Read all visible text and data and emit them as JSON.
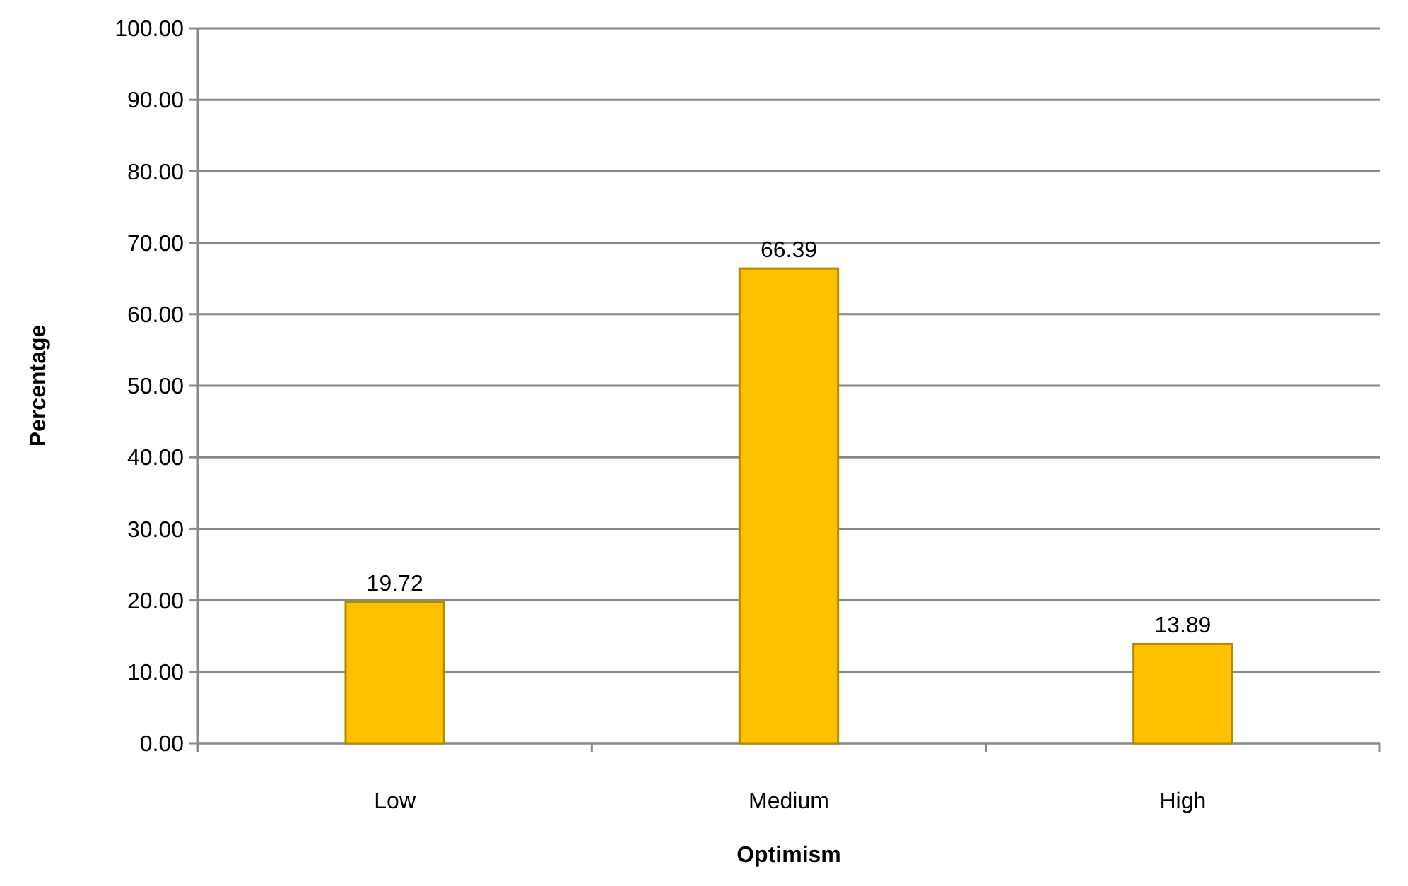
{
  "chart_data": {
    "type": "bar",
    "xlabel": "Optimism",
    "ylabel": "Percentage",
    "categories": [
      "Low",
      "Medium",
      "High"
    ],
    "values": [
      19.72,
      66.39,
      13.89
    ],
    "color": "#ffc000",
    "ylim": [
      0,
      100
    ],
    "yticks": [
      {
        "value": 0,
        "label": "0.00"
      },
      {
        "value": 10,
        "label": "10.00"
      },
      {
        "value": 20,
        "label": "20.00"
      },
      {
        "value": 30,
        "label": "30.00"
      },
      {
        "value": 40,
        "label": "40.00"
      },
      {
        "value": 50,
        "label": "50.00"
      },
      {
        "value": 60,
        "label": "60.00"
      },
      {
        "value": 70,
        "label": "70.00"
      },
      {
        "value": 80,
        "label": "80.00"
      },
      {
        "value": 90,
        "label": "90.00"
      },
      {
        "value": 100,
        "label": "100.00"
      }
    ],
    "grid": true,
    "data_labels": true
  }
}
